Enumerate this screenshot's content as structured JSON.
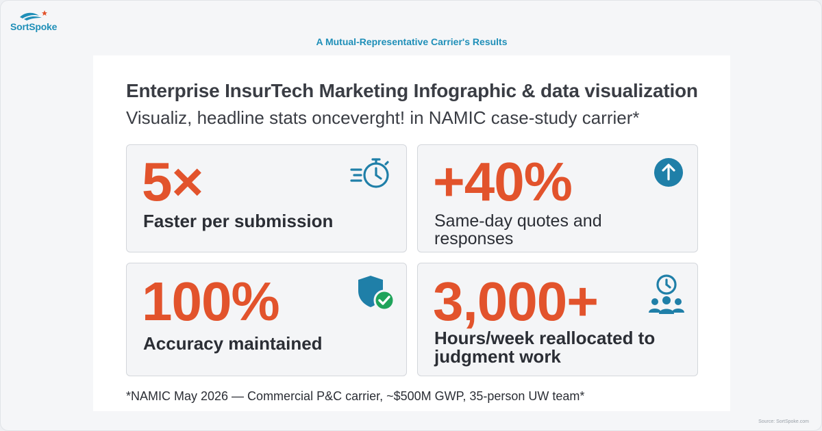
{
  "brand": {
    "name": "SortSpoke",
    "logo_icon": "wave-star-logo-icon",
    "color": "#1f8fb8"
  },
  "header": {
    "title": "A Mutual-Representative Carrier's Results"
  },
  "card": {
    "title": "Enterprise InsurTech Marketing Infographic & data visualization",
    "subtitle": "Visualiz, headline stats onceverght! in NAMIC case-study carrier*"
  },
  "stats": [
    {
      "value": "5×",
      "label": "Faster per submission",
      "icon": "stopwatch-speed-icon"
    },
    {
      "value": "+40%",
      "label": "Same-day quotes and responses",
      "icon": "arrow-up-circle-icon"
    },
    {
      "value": "100%",
      "label": "Accuracy maintained",
      "icon": "shield-check-icon"
    },
    {
      "value": "3,000+",
      "label": "Hours/week reallocated to judgment work",
      "icon": "clock-team-icon"
    }
  ],
  "footnote": "*NAMIC May 2026 — Commercial P&C carrier, ~$500M GWP, 35-person UW team*",
  "source": "Source: SortSpoke.com",
  "colors": {
    "accent": "#e2532c",
    "icon": "#1f7fa8",
    "check": "#1fa35a",
    "text": "#2b2e35"
  }
}
